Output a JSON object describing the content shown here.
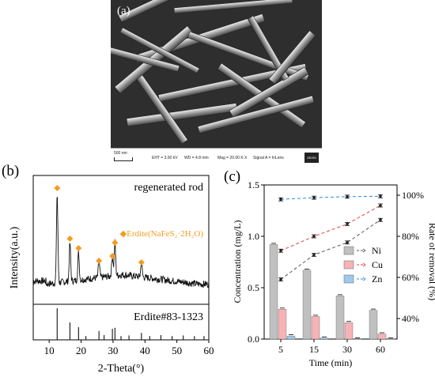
{
  "panel_a": {
    "label": "(a)",
    "scale_bar": "500 nm",
    "info": [
      "EHT = 3.00 kV",
      "WD = 4.8 mm",
      "Mag = 20.00 K X",
      "Signal A = InLens"
    ],
    "logo": "ZEISS"
  },
  "panel_b": {
    "label": "(b)",
    "upper_title": "regenerated rod",
    "legend_text": "◆Erdite(NaFeS₂·2H₂O)",
    "lower_title": "Erdite#83-1323",
    "ylabel": "Intensity(a.u.)",
    "xlabel": "2-Theta(°)",
    "xticks": [
      "10",
      "20",
      "30",
      "40",
      "50",
      "60"
    ],
    "marker_color": "#f39c1f"
  },
  "panel_c": {
    "label": "(c)",
    "ylabel_left": "Concentration (mg/L)",
    "ylabel_right": "Rate of removal (%)",
    "xlabel": "Time (min)",
    "yticks_left": [
      "0.0",
      "0.5",
      "1.0",
      "1.5"
    ],
    "yticks_right": [
      "40%",
      "60%",
      "80%",
      "100%"
    ],
    "legend": [
      "Ni",
      "Cu",
      "Zn"
    ]
  },
  "chart_data": [
    {
      "type": "line",
      "panel": "b-upper",
      "title": "regenerated rod",
      "xlabel": "2-Theta(°)",
      "ylabel": "Intensity(a.u.)",
      "xlim": [
        5,
        60
      ],
      "peaks_marked": [
        12.5,
        16.5,
        19.2,
        25.6,
        29.8,
        30.6,
        38.9
      ]
    },
    {
      "type": "bar",
      "panel": "b-lower",
      "title": "Erdite#83-1323",
      "xlim": [
        5,
        60
      ],
      "x": [
        12.5,
        16.5,
        19.2,
        21.5,
        25.6,
        27.2,
        29.8,
        30.6,
        32.5,
        35.0,
        38.9,
        41.5,
        45.0,
        48.5,
        52.0,
        55.5,
        58.5
      ],
      "values": [
        1.0,
        0.55,
        0.4,
        0.12,
        0.28,
        0.15,
        0.35,
        0.38,
        0.12,
        0.14,
        0.22,
        0.12,
        0.15,
        0.12,
        0.14,
        0.12,
        0.12
      ]
    },
    {
      "type": "bar",
      "panel": "c",
      "categories": [
        "5",
        "15",
        "30",
        "60"
      ],
      "xlabel": "Time (min)",
      "ylabel": "Concentration (mg/L)",
      "ylim": [
        0,
        1.5
      ],
      "series": [
        {
          "name": "Ni",
          "values": [
            0.92,
            0.67,
            0.42,
            0.28
          ],
          "color": "#c0c0c0"
        },
        {
          "name": "Cu",
          "values": [
            0.29,
            0.22,
            0.16,
            0.05
          ],
          "color": "#f6b3b6"
        },
        {
          "name": "Zn",
          "values": [
            0.03,
            0.01,
            0.0,
            0.0
          ],
          "color": "#9fc9ea"
        }
      ]
    },
    {
      "type": "line",
      "panel": "c",
      "categories": [
        "5",
        "15",
        "30",
        "60"
      ],
      "ylabel": "Rate of removal (%)",
      "ylim": [
        30,
        105
      ],
      "series": [
        {
          "name": "Ni",
          "values": [
            59,
            71,
            77,
            88
          ],
          "color": "#555555"
        },
        {
          "name": "Cu",
          "values": [
            73,
            80,
            86,
            95
          ],
          "color": "#e04040"
        },
        {
          "name": "Zn",
          "values": [
            98,
            98.8,
            99.3,
            99.5
          ],
          "color": "#2a8ad6"
        }
      ]
    }
  ]
}
